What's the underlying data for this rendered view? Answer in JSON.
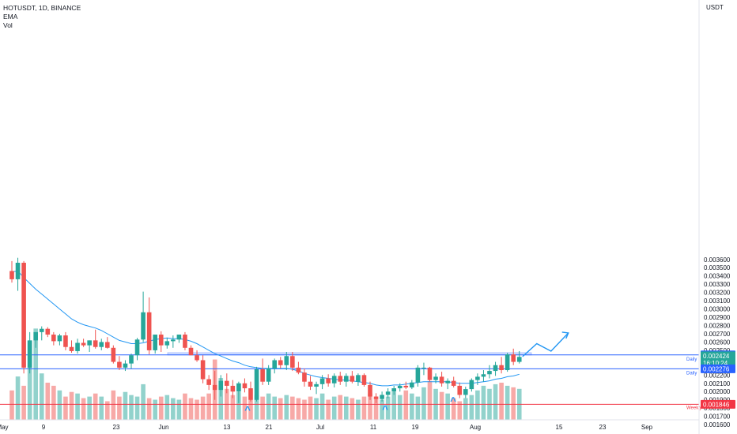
{
  "header": {
    "symbol_line": "HOTUSDT, 1D, BINANCE",
    "indicator_ema": "EMA",
    "indicator_vol": "Vol"
  },
  "chart_data": {
    "type": "candlestick",
    "symbol": "HOTUSDT",
    "interval": "1D",
    "exchange": "BINANCE",
    "quote_currency": "USDT",
    "y_axis_ticks": [
      "0.003600",
      "0.003500",
      "0.003400",
      "0.003300",
      "0.003200",
      "0.003100",
      "0.003000",
      "0.002900",
      "0.002800",
      "0.002700",
      "0.002600",
      "0.002500",
      "0.002400",
      "0.002300",
      "0.002200",
      "0.002100",
      "0.002000",
      "0.001900",
      "0.001800",
      "0.001700",
      "0.001600"
    ],
    "ylim": [
      0.00156,
      0.00366
    ],
    "x_axis_ticks": [
      "May",
      "9",
      "23",
      "Jun",
      "13",
      "21",
      "Jul",
      "11",
      "19",
      "Aug",
      "15",
      "23",
      "Sep"
    ],
    "price_labels": [
      {
        "value": "0.002444",
        "color": "#2962ff"
      },
      {
        "value": "0.002424",
        "color": "#26a69a"
      },
      {
        "value": "16:10:24",
        "color": "#26a69a"
      },
      {
        "value": "0.002276",
        "color": "#2962ff"
      },
      {
        "value": "0.001846",
        "color": "#f23645"
      }
    ],
    "level_lines": [
      {
        "name": "Daily",
        "price": 0.002444,
        "color": "#2962ff"
      },
      {
        "name": "Daily",
        "price": 0.002276,
        "color": "#2962ff"
      },
      {
        "name": "Weekly",
        "price": 0.001846,
        "color": "#f23645"
      }
    ],
    "resistance_zone": {
      "from": 0.002444,
      "to": 0.00249,
      "color": "#2962ff"
    },
    "ema_color": "#2196f3",
    "up_color": "#26a69a",
    "down_color": "#ef5350",
    "candles": [
      {
        "o": 0.00346,
        "h": 0.00358,
        "l": 0.00332,
        "c": 0.00336
      },
      {
        "o": 0.00336,
        "h": 0.00362,
        "l": 0.00322,
        "c": 0.00356
      },
      {
        "o": 0.00356,
        "h": 0.00358,
        "l": 0.00222,
        "c": 0.00229
      },
      {
        "o": 0.00229,
        "h": 0.00272,
        "l": 0.00222,
        "c": 0.00262
      },
      {
        "o": 0.00262,
        "h": 0.00272,
        "l": 0.00253,
        "c": 0.00272
      },
      {
        "o": 0.00272,
        "h": 0.00279,
        "l": 0.00262,
        "c": 0.00276
      },
      {
        "o": 0.00276,
        "h": 0.00278,
        "l": 0.00266,
        "c": 0.00269
      },
      {
        "o": 0.00269,
        "h": 0.00272,
        "l": 0.00256,
        "c": 0.00261
      },
      {
        "o": 0.00261,
        "h": 0.0027,
        "l": 0.00256,
        "c": 0.00268
      },
      {
        "o": 0.00268,
        "h": 0.00272,
        "l": 0.0025,
        "c": 0.00254
      },
      {
        "o": 0.00254,
        "h": 0.00262,
        "l": 0.00247,
        "c": 0.00249
      },
      {
        "o": 0.00249,
        "h": 0.00264,
        "l": 0.00246,
        "c": 0.00259
      },
      {
        "o": 0.00259,
        "h": 0.00264,
        "l": 0.00254,
        "c": 0.00256
      },
      {
        "o": 0.00256,
        "h": 0.00262,
        "l": 0.00248,
        "c": 0.00262
      },
      {
        "o": 0.00262,
        "h": 0.00275,
        "l": 0.00252,
        "c": 0.00254
      },
      {
        "o": 0.00254,
        "h": 0.00264,
        "l": 0.0025,
        "c": 0.0026
      },
      {
        "o": 0.0026,
        "h": 0.00266,
        "l": 0.00252,
        "c": 0.00253
      },
      {
        "o": 0.00253,
        "h": 0.00256,
        "l": 0.00234,
        "c": 0.00236
      },
      {
        "o": 0.00236,
        "h": 0.00243,
        "l": 0.00226,
        "c": 0.00229
      },
      {
        "o": 0.00229,
        "h": 0.00238,
        "l": 0.00225,
        "c": 0.00234
      },
      {
        "o": 0.00234,
        "h": 0.00246,
        "l": 0.00228,
        "c": 0.00244
      },
      {
        "o": 0.00244,
        "h": 0.00265,
        "l": 0.00238,
        "c": 0.00263
      },
      {
        "o": 0.00263,
        "h": 0.00321,
        "l": 0.0026,
        "c": 0.00296
      },
      {
        "o": 0.00296,
        "h": 0.00314,
        "l": 0.00245,
        "c": 0.0025
      },
      {
        "o": 0.0025,
        "h": 0.00268,
        "l": 0.00246,
        "c": 0.00269
      },
      {
        "o": 0.00269,
        "h": 0.00273,
        "l": 0.00248,
        "c": 0.00256
      },
      {
        "o": 0.00256,
        "h": 0.00265,
        "l": 0.00252,
        "c": 0.00261
      },
      {
        "o": 0.00261,
        "h": 0.00268,
        "l": 0.00253,
        "c": 0.00263
      },
      {
        "o": 0.00263,
        "h": 0.00269,
        "l": 0.00259,
        "c": 0.00269
      },
      {
        "o": 0.00269,
        "h": 0.00272,
        "l": 0.0025,
        "c": 0.00253
      },
      {
        "o": 0.00253,
        "h": 0.00256,
        "l": 0.00244,
        "c": 0.00244
      },
      {
        "o": 0.00244,
        "h": 0.0025,
        "l": 0.00236,
        "c": 0.00238
      },
      {
        "o": 0.00238,
        "h": 0.00244,
        "l": 0.0021,
        "c": 0.00215
      },
      {
        "o": 0.00215,
        "h": 0.0022,
        "l": 0.00202,
        "c": 0.00208
      },
      {
        "o": 0.00208,
        "h": 0.00225,
        "l": 0.0019,
        "c": 0.00202
      },
      {
        "o": 0.00202,
        "h": 0.0022,
        "l": 0.00194,
        "c": 0.00213
      },
      {
        "o": 0.00213,
        "h": 0.00222,
        "l": 0.00198,
        "c": 0.00207
      },
      {
        "o": 0.00207,
        "h": 0.00214,
        "l": 0.00192,
        "c": 0.002
      },
      {
        "o": 0.002,
        "h": 0.00212,
        "l": 0.00186,
        "c": 0.0021
      },
      {
        "o": 0.0021,
        "h": 0.00216,
        "l": 0.00199,
        "c": 0.00204
      },
      {
        "o": 0.00204,
        "h": 0.00212,
        "l": 0.00188,
        "c": 0.0019
      },
      {
        "o": 0.0019,
        "h": 0.0023,
        "l": 0.00188,
        "c": 0.00227
      },
      {
        "o": 0.00227,
        "h": 0.0024,
        "l": 0.00208,
        "c": 0.00212
      },
      {
        "o": 0.00212,
        "h": 0.00232,
        "l": 0.00208,
        "c": 0.00228
      },
      {
        "o": 0.00228,
        "h": 0.0024,
        "l": 0.00222,
        "c": 0.00238
      },
      {
        "o": 0.00238,
        "h": 0.00242,
        "l": 0.00228,
        "c": 0.00232
      },
      {
        "o": 0.00232,
        "h": 0.00248,
        "l": 0.00226,
        "c": 0.00243
      },
      {
        "o": 0.00243,
        "h": 0.00248,
        "l": 0.00225,
        "c": 0.00229
      },
      {
        "o": 0.00229,
        "h": 0.00236,
        "l": 0.00221,
        "c": 0.00223
      },
      {
        "o": 0.00223,
        "h": 0.00228,
        "l": 0.00206,
        "c": 0.00212
      },
      {
        "o": 0.00212,
        "h": 0.00219,
        "l": 0.00202,
        "c": 0.00206
      },
      {
        "o": 0.00206,
        "h": 0.00212,
        "l": 0.00197,
        "c": 0.00209
      },
      {
        "o": 0.00209,
        "h": 0.0022,
        "l": 0.00203,
        "c": 0.00216
      },
      {
        "o": 0.00216,
        "h": 0.00221,
        "l": 0.00206,
        "c": 0.0021
      },
      {
        "o": 0.0021,
        "h": 0.00222,
        "l": 0.00205,
        "c": 0.00219
      },
      {
        "o": 0.00219,
        "h": 0.00224,
        "l": 0.00208,
        "c": 0.00212
      },
      {
        "o": 0.00212,
        "h": 0.00222,
        "l": 0.00206,
        "c": 0.00219
      },
      {
        "o": 0.00219,
        "h": 0.00225,
        "l": 0.0021,
        "c": 0.00212
      },
      {
        "o": 0.00212,
        "h": 0.00222,
        "l": 0.00207,
        "c": 0.0022
      },
      {
        "o": 0.0022,
        "h": 0.00222,
        "l": 0.00206,
        "c": 0.00208
      },
      {
        "o": 0.00208,
        "h": 0.00212,
        "l": 0.0019,
        "c": 0.00194
      },
      {
        "o": 0.00194,
        "h": 0.00198,
        "l": 0.00186,
        "c": 0.00191
      },
      {
        "o": 0.00191,
        "h": 0.002,
        "l": 0.00188,
        "c": 0.00196
      },
      {
        "o": 0.00196,
        "h": 0.00204,
        "l": 0.00192,
        "c": 0.002
      },
      {
        "o": 0.002,
        "h": 0.00207,
        "l": 0.00196,
        "c": 0.00204
      },
      {
        "o": 0.00204,
        "h": 0.0021,
        "l": 0.002,
        "c": 0.00207
      },
      {
        "o": 0.00207,
        "h": 0.00212,
        "l": 0.00203,
        "c": 0.00205
      },
      {
        "o": 0.00205,
        "h": 0.00214,
        "l": 0.00203,
        "c": 0.00211
      },
      {
        "o": 0.00211,
        "h": 0.00232,
        "l": 0.00206,
        "c": 0.00229
      },
      {
        "o": 0.00229,
        "h": 0.00235,
        "l": 0.0022,
        "c": 0.00229
      },
      {
        "o": 0.00229,
        "h": 0.0023,
        "l": 0.00212,
        "c": 0.00214
      },
      {
        "o": 0.00214,
        "h": 0.00222,
        "l": 0.0021,
        "c": 0.00218
      },
      {
        "o": 0.00218,
        "h": 0.00224,
        "l": 0.00206,
        "c": 0.0021
      },
      {
        "o": 0.0021,
        "h": 0.00216,
        "l": 0.00203,
        "c": 0.00213
      },
      {
        "o": 0.00213,
        "h": 0.00218,
        "l": 0.00205,
        "c": 0.00207
      },
      {
        "o": 0.00207,
        "h": 0.00211,
        "l": 0.00192,
        "c": 0.00196
      },
      {
        "o": 0.00196,
        "h": 0.00206,
        "l": 0.00192,
        "c": 0.00203
      },
      {
        "o": 0.00203,
        "h": 0.00216,
        "l": 0.002,
        "c": 0.00214
      },
      {
        "o": 0.00214,
        "h": 0.00222,
        "l": 0.00208,
        "c": 0.00218
      },
      {
        "o": 0.00218,
        "h": 0.00226,
        "l": 0.00212,
        "c": 0.00221
      },
      {
        "o": 0.00221,
        "h": 0.00232,
        "l": 0.00216,
        "c": 0.00225
      },
      {
        "o": 0.00225,
        "h": 0.00236,
        "l": 0.00219,
        "c": 0.00232
      },
      {
        "o": 0.00232,
        "h": 0.00242,
        "l": 0.00222,
        "c": 0.00226
      },
      {
        "o": 0.00226,
        "h": 0.00247,
        "l": 0.00224,
        "c": 0.00245
      },
      {
        "o": 0.00245,
        "h": 0.00252,
        "l": 0.00232,
        "c": 0.00236
      },
      {
        "o": 0.00236,
        "h": 0.00249,
        "l": 0.00234,
        "c": 0.00242
      }
    ],
    "ema": [
      0.00345,
      0.00346,
      0.00338,
      0.00331,
      0.00324,
      0.00318,
      0.00312,
      0.00306,
      0.003,
      0.00294,
      0.00288,
      0.00284,
      0.00281,
      0.00279,
      0.00277,
      0.00274,
      0.0027,
      0.00266,
      0.00262,
      0.0026,
      0.00258,
      0.00258,
      0.00259,
      0.00261,
      0.00263,
      0.00264,
      0.00265,
      0.00264,
      0.00264,
      0.00263,
      0.00261,
      0.00258,
      0.00254,
      0.0025,
      0.00246,
      0.00243,
      0.0024,
      0.00237,
      0.00235,
      0.00232,
      0.0023,
      0.00229,
      0.00228,
      0.00228,
      0.00228,
      0.00228,
      0.00228,
      0.00227,
      0.00225,
      0.00222,
      0.0022,
      0.00218,
      0.00217,
      0.00216,
      0.00215,
      0.00214,
      0.00214,
      0.00213,
      0.00212,
      0.00211,
      0.0021,
      0.00208,
      0.00207,
      0.00207,
      0.00208,
      0.00208,
      0.00209,
      0.0021,
      0.00211,
      0.00212,
      0.00212,
      0.00212,
      0.00212,
      0.00212,
      0.00211,
      0.0021,
      0.0021,
      0.0021,
      0.00211,
      0.00212,
      0.00213,
      0.00215,
      0.00216,
      0.00218,
      0.00219,
      0.00221
    ],
    "volume": [
      38,
      56,
      44,
      102,
      118,
      60,
      48,
      44,
      38,
      30,
      36,
      34,
      28,
      30,
      34,
      30,
      24,
      38,
      30,
      36,
      32,
      30,
      46,
      28,
      26,
      30,
      32,
      28,
      26,
      34,
      28,
      26,
      30,
      34,
      78,
      54,
      40,
      32,
      36,
      30,
      26,
      32,
      30,
      34,
      30,
      28,
      32,
      30,
      28,
      26,
      30,
      28,
      34,
      26,
      30,
      32,
      30,
      28,
      26,
      30,
      34,
      28,
      26,
      30,
      36,
      32,
      38,
      34,
      30,
      42,
      50,
      40,
      36,
      34,
      28,
      24,
      28,
      32,
      38,
      44,
      40,
      46,
      48,
      44,
      42,
      40
    ],
    "annotations": {
      "bottom_markers": [
        "^",
        "^",
        "^"
      ],
      "projection_path": [
        0.002424,
        0.00258,
        0.00249,
        0.00271
      ]
    }
  }
}
